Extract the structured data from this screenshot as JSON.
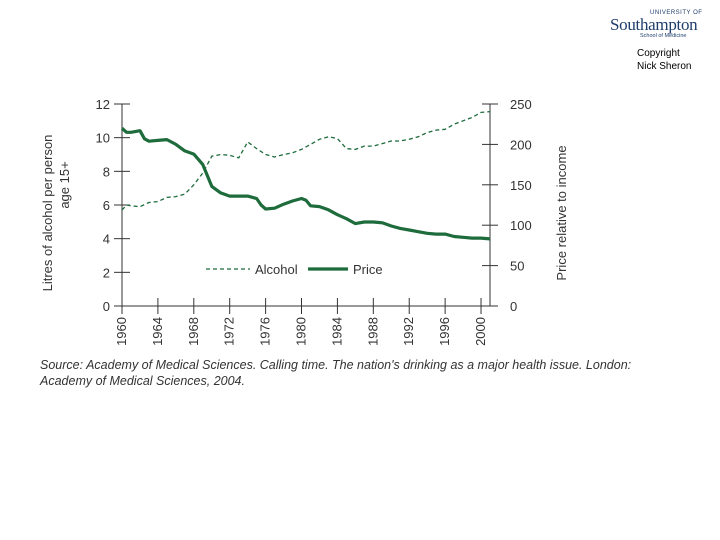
{
  "logo": {
    "university_of": "UNIVERSITY OF",
    "name": "Southampton",
    "school": "School of Medicine"
  },
  "copyright": {
    "line1": "Copyright",
    "line2": "Nick Sheron"
  },
  "source": "Source: Academy of Medical Sciences. Calling time. The nation's drinking as a major health issue. London: Academy of Medical Sciences, 2004.",
  "colors": {
    "series": "#1e6b3c",
    "axis": "#333333"
  },
  "chart_data": {
    "type": "line",
    "title": "",
    "xlabel": "",
    "ylabel": "Litres of alcohol per person age 15+",
    "ylabel_lines": [
      "Litres of alcohol per person",
      "age 15+"
    ],
    "y2label": "Price relative to income",
    "xlim": [
      1960,
      2001
    ],
    "ylim": [
      0,
      12
    ],
    "y2lim": [
      0,
      250
    ],
    "x_ticks": [
      1960,
      1964,
      1968,
      1972,
      1976,
      1980,
      1984,
      1988,
      1992,
      1996,
      2000
    ],
    "y_ticks": [
      0,
      2,
      4,
      6,
      8,
      10,
      12
    ],
    "y2_ticks": [
      0,
      50,
      100,
      150,
      200,
      250
    ],
    "series": [
      {
        "name": "Alcohol",
        "axis": "left",
        "style": "dashed",
        "points": [
          [
            1960,
            5.7
          ],
          [
            1960.5,
            6.0
          ],
          [
            1961,
            5.95
          ],
          [
            1962,
            5.9
          ],
          [
            1963,
            6.15
          ],
          [
            1964,
            6.2
          ],
          [
            1965,
            6.45
          ],
          [
            1966,
            6.5
          ],
          [
            1967,
            6.65
          ],
          [
            1968,
            7.2
          ],
          [
            1969,
            7.9
          ],
          [
            1970,
            8.9
          ],
          [
            1971,
            9.0
          ],
          [
            1972,
            8.95
          ],
          [
            1973,
            8.8
          ],
          [
            1974,
            9.75
          ],
          [
            1975,
            9.35
          ],
          [
            1976,
            9.0
          ],
          [
            1977,
            8.85
          ],
          [
            1978,
            9.0
          ],
          [
            1979,
            9.1
          ],
          [
            1980,
            9.3
          ],
          [
            1981,
            9.6
          ],
          [
            1982,
            9.9
          ],
          [
            1983,
            10.05
          ],
          [
            1984,
            9.95
          ],
          [
            1985,
            9.35
          ],
          [
            1986,
            9.3
          ],
          [
            1987,
            9.5
          ],
          [
            1988,
            9.5
          ],
          [
            1989,
            9.65
          ],
          [
            1990,
            9.8
          ],
          [
            1991,
            9.8
          ],
          [
            1992,
            9.9
          ],
          [
            1993,
            10.05
          ],
          [
            1994,
            10.3
          ],
          [
            1995,
            10.45
          ],
          [
            1996,
            10.5
          ],
          [
            1997,
            10.8
          ],
          [
            1998,
            11.0
          ],
          [
            1999,
            11.2
          ],
          [
            2000,
            11.5
          ],
          [
            2001,
            11.55
          ]
        ]
      },
      {
        "name": "Price",
        "axis": "right",
        "style": "solid",
        "points": [
          [
            1960,
            220
          ],
          [
            1960.5,
            215
          ],
          [
            1961,
            215
          ],
          [
            1962,
            217
          ],
          [
            1962.5,
            207
          ],
          [
            1963,
            204
          ],
          [
            1964,
            205
          ],
          [
            1965,
            206
          ],
          [
            1966,
            200
          ],
          [
            1967,
            192
          ],
          [
            1968,
            188
          ],
          [
            1969,
            175
          ],
          [
            1970,
            148
          ],
          [
            1971,
            140
          ],
          [
            1972,
            136
          ],
          [
            1973,
            136
          ],
          [
            1974,
            136
          ],
          [
            1975,
            133
          ],
          [
            1975.5,
            125
          ],
          [
            1976,
            120
          ],
          [
            1977,
            121
          ],
          [
            1978,
            126
          ],
          [
            1979,
            130
          ],
          [
            1980,
            133
          ],
          [
            1980.5,
            131
          ],
          [
            1981,
            124
          ],
          [
            1982,
            123
          ],
          [
            1983,
            119
          ],
          [
            1984,
            113
          ],
          [
            1985,
            108
          ],
          [
            1986,
            102
          ],
          [
            1987,
            104
          ],
          [
            1988,
            104
          ],
          [
            1989,
            103
          ],
          [
            1990,
            99
          ],
          [
            1991,
            96
          ],
          [
            1992,
            94
          ],
          [
            1993,
            92
          ],
          [
            1994,
            90
          ],
          [
            1995,
            89
          ],
          [
            1996,
            89
          ],
          [
            1997,
            86
          ],
          [
            1998,
            85
          ],
          [
            1999,
            84
          ],
          [
            2000,
            84
          ],
          [
            2001,
            83
          ]
        ]
      }
    ],
    "legend": {
      "placement": "lower-right",
      "entries": [
        "Alcohol",
        "Price"
      ]
    }
  }
}
